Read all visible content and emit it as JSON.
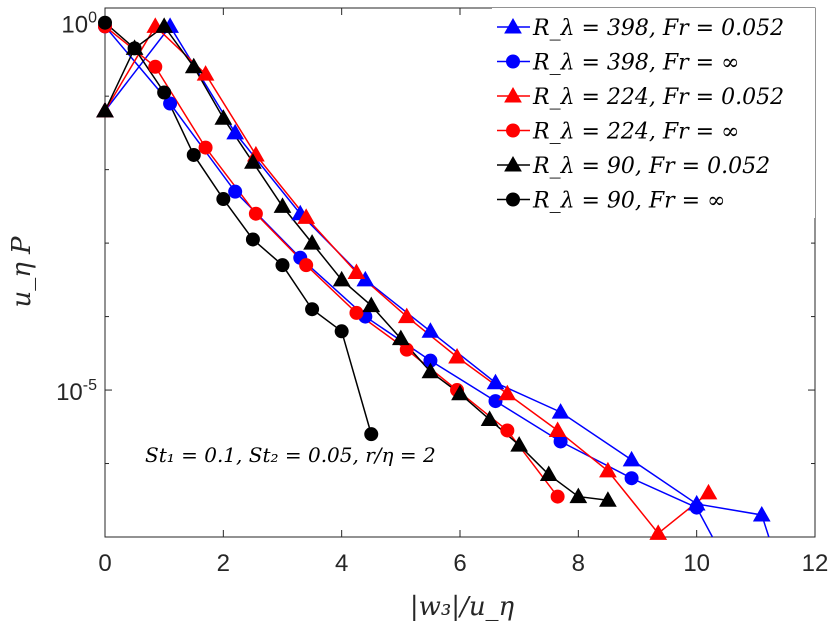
{
  "chart_data": {
    "type": "line",
    "xlabel": "|w₃|/u_η",
    "ylabel": "u_η P",
    "xlim": [
      0,
      12
    ],
    "ylim_log10": [
      -7,
      0.2
    ],
    "yscale": "log",
    "xticks": [
      0,
      2,
      4,
      6,
      8,
      10,
      12
    ],
    "yticks": [
      {
        "exp": 0,
        "base": "10",
        "sup": "0"
      },
      {
        "exp": -5,
        "base": "10",
        "sup": "-5"
      }
    ],
    "grid": false,
    "legend_position": "top-right",
    "annotation": "St₁ = 0.1, St₂ = 0.05, r/η = 2",
    "series": [
      {
        "name": "R_λ = 398, Fr = 0.052",
        "color": "#0000ff",
        "marker": "triangle",
        "x": [
          0,
          1.1,
          2.2,
          3.3,
          4.4,
          5.5,
          6.6,
          7.7,
          8.9,
          10.0,
          11.1,
          11.3
        ],
        "log10y": [
          -1.2,
          -0.05,
          -1.5,
          -2.6,
          -3.5,
          -4.2,
          -4.9,
          -5.3,
          -5.95,
          -6.55,
          -6.7,
          -7.2
        ]
      },
      {
        "name": "R_λ = 398, Fr = ∞",
        "color": "#0000ff",
        "marker": "circle",
        "x": [
          0,
          1.1,
          2.2,
          3.3,
          4.4,
          5.5,
          6.6,
          7.7,
          8.9,
          10.0,
          10.4
        ],
        "log10y": [
          -0.05,
          -1.1,
          -2.3,
          -3.2,
          -4.0,
          -4.6,
          -5.15,
          -5.7,
          -6.2,
          -6.6,
          -7.2
        ]
      },
      {
        "name": "R_λ = 224, Fr = 0.052",
        "color": "#ff0000",
        "marker": "triangle",
        "x": [
          0,
          0.85,
          1.7,
          2.55,
          3.4,
          4.25,
          5.1,
          5.95,
          6.8,
          7.65,
          8.5,
          9.35,
          10.2
        ],
        "log10y": [
          -1.2,
          -0.05,
          -0.7,
          -1.8,
          -2.65,
          -3.4,
          -4.0,
          -4.55,
          -5.05,
          -5.55,
          -6.1,
          -6.95,
          -6.4
        ]
      },
      {
        "name": "R_λ = 224, Fr = ∞",
        "color": "#ff0000",
        "marker": "circle",
        "x": [
          0,
          0.85,
          1.7,
          2.55,
          3.4,
          4.25,
          5.1,
          5.95,
          6.8,
          7.65
        ],
        "log10y": [
          -0.05,
          -0.6,
          -1.7,
          -2.6,
          -3.3,
          -3.95,
          -4.45,
          -5.0,
          -5.55,
          -6.45
        ]
      },
      {
        "name": "R_λ = 90, Fr = 0.052",
        "color": "#000000",
        "marker": "triangle",
        "x": [
          0,
          0.5,
          1.0,
          1.5,
          2.0,
          2.5,
          3.0,
          3.5,
          4.0,
          4.5,
          5.0,
          5.5,
          6.0,
          6.5,
          7.0,
          7.5,
          8.0,
          8.5
        ],
        "log10y": [
          -1.2,
          -0.35,
          -0.05,
          -0.6,
          -1.3,
          -1.9,
          -2.5,
          -3.0,
          -3.5,
          -3.85,
          -4.3,
          -4.75,
          -5.05,
          -5.4,
          -5.75,
          -6.15,
          -6.45,
          -6.5
        ]
      },
      {
        "name": "R_λ = 90, Fr = ∞",
        "color": "#000000",
        "marker": "circle",
        "x": [
          0,
          0.5,
          1.0,
          1.5,
          2.0,
          2.5,
          3.0,
          3.5,
          4.0,
          4.5
        ],
        "log10y": [
          0.0,
          -0.35,
          -0.95,
          -1.8,
          -2.4,
          -2.95,
          -3.3,
          -3.9,
          -4.2,
          -5.6
        ]
      }
    ]
  }
}
